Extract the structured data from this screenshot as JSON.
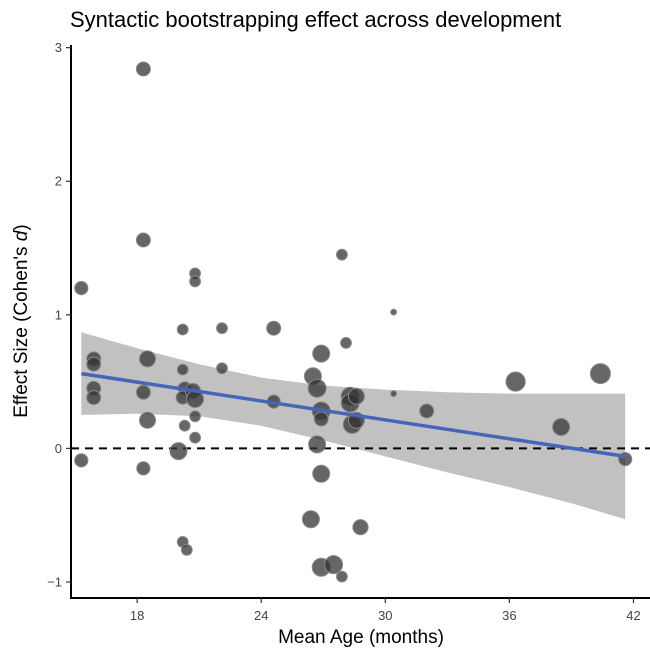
{
  "chart_data": {
    "type": "scatter",
    "title": "Syntactic bootstrapping effect across development",
    "xlabel": "Mean Age (months)",
    "ylabel_prefix": "Effect Size (Cohen's ",
    "ylabel_italic": "d",
    "ylabel_suffix": ")",
    "xlim": [
      14.8,
      42.8
    ],
    "ylim": [
      -1.12,
      3.02
    ],
    "xticks": [
      18,
      24,
      30,
      36,
      42
    ],
    "yticks": [
      -1,
      0,
      1,
      2,
      3
    ],
    "xtick_labels": [
      "18",
      "24",
      "30",
      "36",
      "42"
    ],
    "ytick_labels": [
      "−1",
      "0",
      "1",
      "2",
      "3"
    ],
    "reference_line_y": 0,
    "grid": false,
    "colors": {
      "point_fill": "#333333",
      "point_stroke": "#888888",
      "fit_line": "#4566b8",
      "ci_band": "#bebebe",
      "reference_line": "#000000"
    },
    "points": [
      {
        "x": 15.3,
        "y": 1.2,
        "n": 30
      },
      {
        "x": 15.3,
        "y": -0.09,
        "n": 30
      },
      {
        "x": 15.9,
        "y": 0.67,
        "n": 34
      },
      {
        "x": 15.9,
        "y": 0.63,
        "n": 34
      },
      {
        "x": 15.9,
        "y": 0.45,
        "n": 34
      },
      {
        "x": 15.9,
        "y": 0.38,
        "n": 34
      },
      {
        "x": 18.3,
        "y": 2.84,
        "n": 34
      },
      {
        "x": 18.3,
        "y": 1.56,
        "n": 34
      },
      {
        "x": 18.3,
        "y": -0.15,
        "n": 30
      },
      {
        "x": 18.3,
        "y": 0.42,
        "n": 34
      },
      {
        "x": 18.5,
        "y": 0.67,
        "n": 44
      },
      {
        "x": 18.5,
        "y": 0.21,
        "n": 44
      },
      {
        "x": 20.2,
        "y": 0.89,
        "n": 20
      },
      {
        "x": 20.2,
        "y": 0.59,
        "n": 20
      },
      {
        "x": 20.3,
        "y": 0.45,
        "n": 30
      },
      {
        "x": 20.2,
        "y": 0.38,
        "n": 30
      },
      {
        "x": 20.3,
        "y": 0.17,
        "n": 20
      },
      {
        "x": 20.0,
        "y": -0.02,
        "n": 50
      },
      {
        "x": 20.2,
        "y": -0.7,
        "n": 20
      },
      {
        "x": 20.4,
        "y": -0.76,
        "n": 20
      },
      {
        "x": 20.8,
        "y": 1.31,
        "n": 20
      },
      {
        "x": 20.8,
        "y": 1.25,
        "n": 20
      },
      {
        "x": 20.7,
        "y": 0.43,
        "n": 40
      },
      {
        "x": 20.8,
        "y": 0.37,
        "n": 50
      },
      {
        "x": 20.8,
        "y": 0.24,
        "n": 20
      },
      {
        "x": 20.8,
        "y": 0.08,
        "n": 20
      },
      {
        "x": 22.1,
        "y": 0.9,
        "n": 20
      },
      {
        "x": 22.1,
        "y": 0.6,
        "n": 20
      },
      {
        "x": 24.6,
        "y": 0.9,
        "n": 34
      },
      {
        "x": 24.6,
        "y": 0.35,
        "n": 30
      },
      {
        "x": 26.4,
        "y": -0.53,
        "n": 50
      },
      {
        "x": 26.5,
        "y": 0.54,
        "n": 50
      },
      {
        "x": 26.7,
        "y": 0.45,
        "n": 56
      },
      {
        "x": 26.7,
        "y": 0.03,
        "n": 50
      },
      {
        "x": 26.9,
        "y": 0.71,
        "n": 50
      },
      {
        "x": 26.9,
        "y": 0.28,
        "n": 56
      },
      {
        "x": 26.9,
        "y": 0.22,
        "n": 34
      },
      {
        "x": 26.9,
        "y": -0.19,
        "n": 50
      },
      {
        "x": 26.9,
        "y": -0.89,
        "n": 56
      },
      {
        "x": 27.5,
        "y": -0.87,
        "n": 56
      },
      {
        "x": 27.9,
        "y": 1.45,
        "n": 20
      },
      {
        "x": 27.9,
        "y": -0.96,
        "n": 20
      },
      {
        "x": 28.1,
        "y": 0.79,
        "n": 20
      },
      {
        "x": 28.3,
        "y": 0.39,
        "n": 56
      },
      {
        "x": 28.3,
        "y": 0.34,
        "n": 56
      },
      {
        "x": 28.4,
        "y": 0.18,
        "n": 56
      },
      {
        "x": 28.6,
        "y": 0.39,
        "n": 44
      },
      {
        "x": 28.6,
        "y": 0.21,
        "n": 44
      },
      {
        "x": 28.8,
        "y": -0.59,
        "n": 40
      },
      {
        "x": 30.4,
        "y": 1.02,
        "n": 6
      },
      {
        "x": 30.4,
        "y": 0.41,
        "n": 6
      },
      {
        "x": 32.0,
        "y": 0.28,
        "n": 34
      },
      {
        "x": 36.3,
        "y": 0.5,
        "n": 64
      },
      {
        "x": 38.5,
        "y": 0.16,
        "n": 50
      },
      {
        "x": 40.4,
        "y": 0.56,
        "n": 70
      },
      {
        "x": 41.6,
        "y": -0.08,
        "n": 30
      }
    ],
    "fit": {
      "x": [
        15.3,
        41.6
      ],
      "y": [
        0.56,
        -0.06
      ],
      "ci_band": [
        {
          "x": 15.3,
          "lower": 0.25,
          "upper": 0.87
        },
        {
          "x": 18.0,
          "lower": 0.26,
          "upper": 0.75
        },
        {
          "x": 21.0,
          "lower": 0.24,
          "upper": 0.63
        },
        {
          "x": 24.0,
          "lower": 0.17,
          "upper": 0.53
        },
        {
          "x": 27.0,
          "lower": 0.06,
          "upper": 0.47
        },
        {
          "x": 30.0,
          "lower": -0.06,
          "upper": 0.44
        },
        {
          "x": 33.0,
          "lower": -0.18,
          "upper": 0.42
        },
        {
          "x": 36.0,
          "lower": -0.29,
          "upper": 0.41
        },
        {
          "x": 39.0,
          "lower": -0.41,
          "upper": 0.41
        },
        {
          "x": 41.6,
          "lower": -0.53,
          "upper": 0.41
        }
      ]
    }
  }
}
